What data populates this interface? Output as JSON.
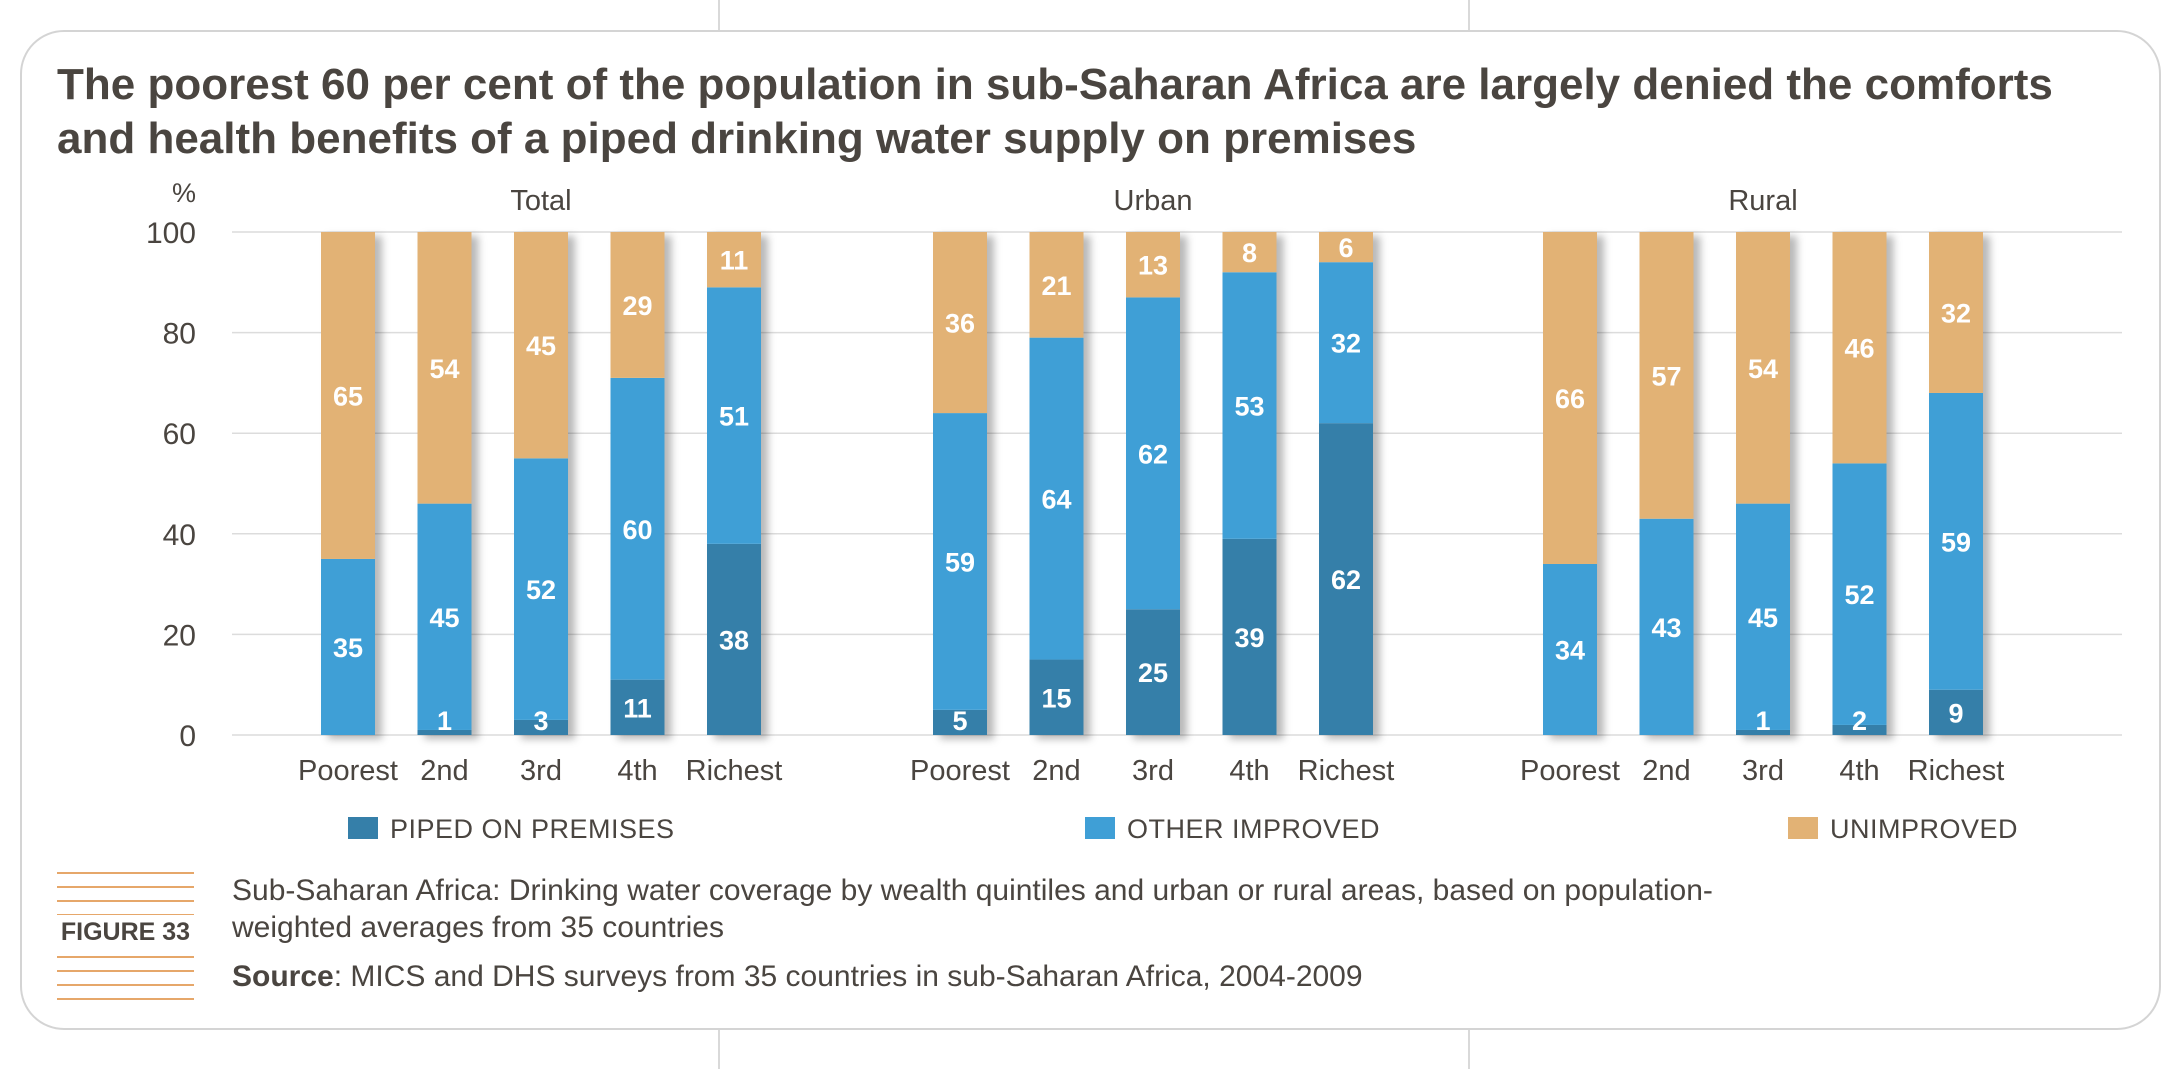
{
  "title": "The poorest 60 per cent of the population in sub-Saharan Africa are largely denied the comforts and health benefits of a piped drinking water supply on premises",
  "figure_label": "FIGURE 33",
  "caption": "Sub-Saharan Africa: Drinking water coverage by wealth quintiles and urban or rural areas, based on population-weighted averages from 35 countries",
  "source_label": "Source",
  "source_text": ": MICS and DHS surveys from 35 countries in sub-Saharan Africa, 2004-2009",
  "colors": {
    "piped": "#357fa9",
    "other_improved": "#3f9fd6",
    "unimproved": "#e2b275",
    "text": "#4a4540",
    "grid": "#dcdcdc"
  },
  "chart_data": [
    {
      "type": "bar",
      "stacked": true,
      "title": "Total",
      "ylabel": "%",
      "ylim": [
        0,
        100
      ],
      "yticks": [
        0,
        20,
        40,
        60,
        80,
        100
      ],
      "grid": true,
      "categories": [
        "Poorest",
        "2nd",
        "3rd",
        "4th",
        "Richest"
      ],
      "series": [
        {
          "name": "PIPED ON PREMISES",
          "values": [
            0,
            1,
            3,
            11,
            38
          ]
        },
        {
          "name": "OTHER IMPROVED",
          "values": [
            35,
            45,
            52,
            60,
            51
          ]
        },
        {
          "name": "UNIMPROVED",
          "values": [
            65,
            54,
            45,
            29,
            11
          ]
        }
      ]
    },
    {
      "type": "bar",
      "stacked": true,
      "title": "Urban",
      "ylim": [
        0,
        100
      ],
      "grid": true,
      "categories": [
        "Poorest",
        "2nd",
        "3rd",
        "4th",
        "Richest"
      ],
      "series": [
        {
          "name": "PIPED ON PREMISES",
          "values": [
            5,
            15,
            25,
            39,
            62
          ]
        },
        {
          "name": "OTHER IMPROVED",
          "values": [
            59,
            64,
            62,
            53,
            32
          ]
        },
        {
          "name": "UNIMPROVED",
          "values": [
            36,
            21,
            13,
            8,
            6
          ]
        }
      ]
    },
    {
      "type": "bar",
      "stacked": true,
      "title": "Rural",
      "ylim": [
        0,
        100
      ],
      "grid": true,
      "categories": [
        "Poorest",
        "2nd",
        "3rd",
        "4th",
        "Richest"
      ],
      "series": [
        {
          "name": "PIPED ON PREMISES",
          "values": [
            0,
            0,
            1,
            2,
            9
          ]
        },
        {
          "name": "OTHER IMPROVED",
          "values": [
            34,
            43,
            45,
            52,
            59
          ]
        },
        {
          "name": "UNIMPROVED",
          "values": [
            66,
            57,
            54,
            46,
            32
          ]
        }
      ]
    }
  ],
  "legend": [
    {
      "label": "PIPED ON PREMISES",
      "color": "#357fa9"
    },
    {
      "label": "OTHER IMPROVED",
      "color": "#3f9fd6"
    },
    {
      "label": "UNIMPROVED",
      "color": "#e2b275"
    }
  ]
}
